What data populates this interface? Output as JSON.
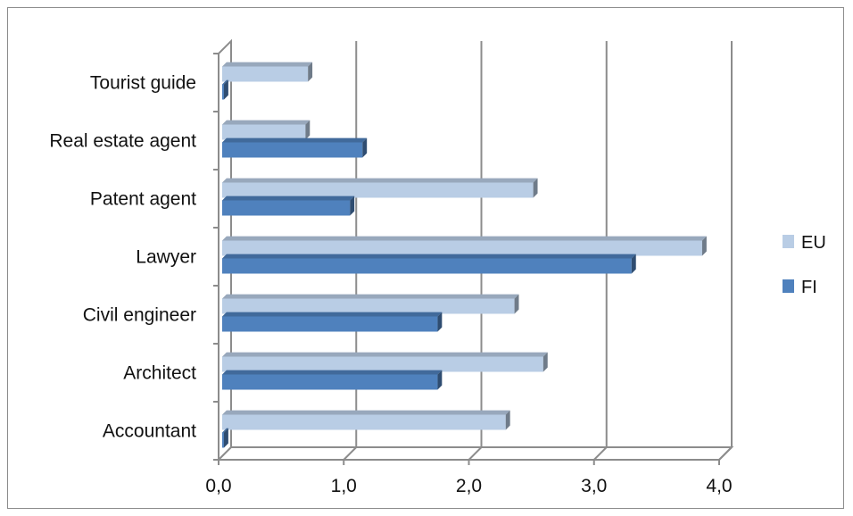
{
  "chart_data": {
    "type": "bar",
    "orientation": "horizontal",
    "style": "3d-clustered",
    "categories": [
      "Tourist guide",
      "Real estate agent",
      "Patent agent",
      "Lawyer",
      "Civil engineer",
      "Architect",
      "Accountant"
    ],
    "series": [
      {
        "name": "EU",
        "color": "#b9cde5",
        "values": [
          0.7,
          0.68,
          2.5,
          3.85,
          2.35,
          2.58,
          2.28
        ]
      },
      {
        "name": "FI",
        "color": "#4f81bd",
        "values": [
          0.02,
          1.15,
          1.05,
          3.3,
          1.75,
          1.75,
          0.02
        ]
      }
    ],
    "xlim": [
      0,
      4
    ],
    "xticks": [
      "0,0",
      "1,0",
      "2,0",
      "3,0",
      "4,0"
    ],
    "xgrid": true,
    "legend": "right"
  }
}
